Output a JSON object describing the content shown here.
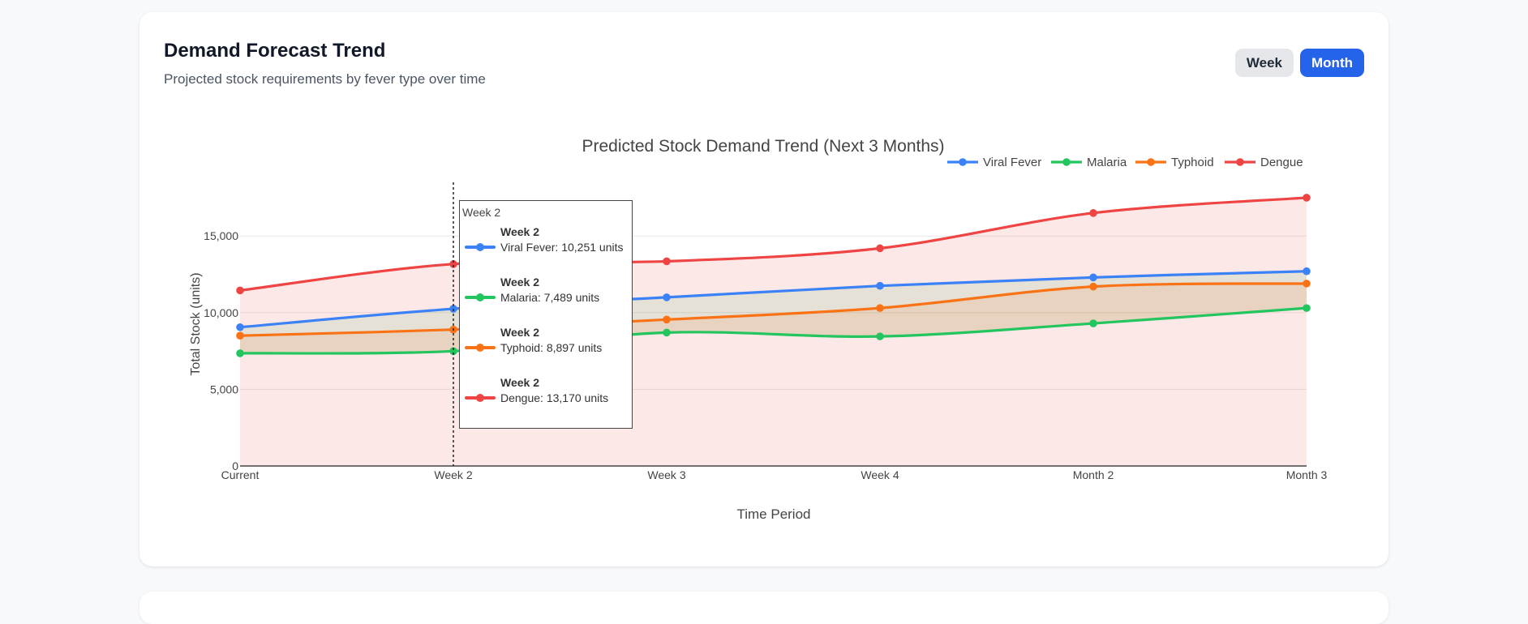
{
  "header": {
    "title": "Demand Forecast Trend",
    "subtitle": "Projected stock requirements by fever type over time"
  },
  "toggle": {
    "week_label": "Week",
    "month_label": "Month",
    "active": "Month"
  },
  "chart_data": {
    "type": "area",
    "title": "Predicted Stock Demand Trend (Next 3 Months)",
    "xlabel": "Time Period",
    "ylabel": "Total Stock (units)",
    "categories": [
      "Current",
      "Week 2",
      "Week 3",
      "Week 4",
      "Month 2",
      "Month 3"
    ],
    "ylim": [
      0,
      18500
    ],
    "yticks": [
      0,
      5000,
      10000,
      15000
    ],
    "ytick_labels": [
      "0",
      "5,000",
      "10,000",
      "15,000"
    ],
    "legend_position": "top-right",
    "grid": true,
    "series": [
      {
        "name": "Viral Fever",
        "color": "#3b82f6",
        "fill": "none",
        "values": [
          9050,
          10251,
          11000,
          11750,
          12300,
          12700
        ]
      },
      {
        "name": "Malaria",
        "color": "#22c55e",
        "fill": "tonexty",
        "values": [
          7350,
          7489,
          8700,
          8450,
          9300,
          10300
        ]
      },
      {
        "name": "Typhoid",
        "color": "#f97316",
        "fill": "tonexty",
        "values": [
          8500,
          8897,
          9550,
          10300,
          11700,
          11900
        ]
      },
      {
        "name": "Dengue",
        "color": "#ef4444",
        "fill": "tozeroy",
        "values": [
          11450,
          13170,
          13350,
          14200,
          16500,
          17500
        ]
      }
    ],
    "hover": {
      "category": "Week 2",
      "header": "Week 2",
      "items": [
        {
          "name": "Week 2",
          "text": "Viral Fever: 10,251 units",
          "color": "#3b82f6"
        },
        {
          "name": "Week 2",
          "text": "Malaria: 7,489 units",
          "color": "#22c55e"
        },
        {
          "name": "Week 2",
          "text": "Typhoid: 8,897 units",
          "color": "#f97316"
        },
        {
          "name": "Week 2",
          "text": "Dengue: 13,170 units",
          "color": "#ef4444"
        }
      ]
    }
  }
}
